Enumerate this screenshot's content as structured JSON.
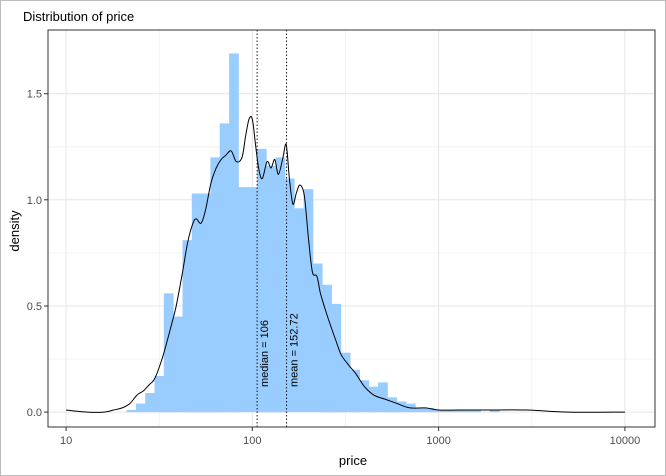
{
  "chart_data": {
    "type": "bar",
    "title": "Distribution of price",
    "xlabel": "price",
    "ylabel": "density",
    "x_scale": "log10",
    "xlim": [
      8,
      14500
    ],
    "ylim": [
      -0.07,
      1.8
    ],
    "x_ticks": [
      10,
      100,
      1000,
      10000
    ],
    "x_tick_labels": [
      "10",
      "100",
      "1000",
      "10000"
    ],
    "y_ticks": [
      0.0,
      0.5,
      1.0,
      1.5
    ],
    "y_tick_labels": [
      "0.0",
      "0.5",
      "1.0",
      "1.5"
    ],
    "grid": true,
    "histogram_bar_color": "#99ccff",
    "density_line_color": "#000000",
    "histogram": {
      "x_left": [
        13.34,
        14.96,
        16.79,
        18.84,
        21.13,
        23.71,
        26.6,
        29.85,
        33.49,
        37.58,
        42.17,
        47.32,
        53.09,
        59.57,
        66.83,
        74.99,
        84.14,
        94.41,
        105.93,
        118.85,
        133.35,
        149.62,
        167.88,
        188.37,
        211.35,
        237.14,
        266.08,
        298.54,
        334.97,
        375.84,
        421.7,
        473.15,
        530.88,
        595.66,
        668.34,
        749.89,
        841.39,
        944.06,
        1059.25,
        1188.5,
        1333.52,
        1496.24,
        1678.8,
        1883.65,
        2113.49,
        2371.37,
        2660.73,
        2985.38,
        3349.65,
        3758.37,
        4216.97
      ],
      "x_right": [
        14.96,
        16.79,
        18.84,
        21.13,
        23.71,
        26.6,
        29.85,
        33.49,
        37.58,
        42.17,
        47.32,
        53.09,
        59.57,
        66.83,
        74.99,
        84.14,
        94.41,
        105.93,
        118.85,
        133.35,
        149.62,
        167.88,
        188.37,
        211.35,
        237.14,
        266.08,
        298.54,
        334.97,
        375.84,
        421.7,
        473.15,
        530.88,
        595.66,
        668.34,
        749.89,
        841.39,
        944.06,
        1059.25,
        1188.5,
        1333.52,
        1496.24,
        1678.8,
        1883.65,
        2113.49,
        2371.37,
        2660.73,
        2985.38,
        3349.65,
        3758.37,
        4216.97,
        4731.51
      ],
      "density": [
        0.0,
        0.0,
        0.0,
        0.0,
        0.01,
        0.04,
        0.09,
        0.17,
        0.56,
        0.45,
        0.81,
        1.03,
        1.03,
        1.2,
        1.36,
        1.69,
        1.06,
        1.06,
        1.24,
        1.16,
        1.2,
        1.1,
        0.96,
        1.05,
        0.7,
        0.6,
        0.51,
        0.28,
        0.2,
        0.15,
        0.12,
        0.14,
        0.07,
        0.05,
        0.04,
        0.02,
        0.02,
        0.01,
        0.01,
        0.01,
        0.01,
        0.01,
        0.0,
        0.01,
        0.0,
        0.0,
        0.0,
        0.0,
        0.0,
        0.0,
        0.0
      ]
    },
    "density_curve": {
      "x": [
        10,
        13,
        16,
        18,
        20,
        22,
        24,
        26,
        28,
        30,
        33,
        36,
        39,
        42,
        45,
        48,
        50,
        53,
        56,
        60,
        64,
        68,
        72,
        77,
        82,
        88,
        92,
        96,
        100,
        104,
        108,
        113,
        120,
        126,
        132,
        138,
        146,
        152,
        158,
        165,
        172,
        180,
        190,
        200,
        210,
        222,
        232,
        245,
        260,
        280,
        300,
        330,
        360,
        400,
        450,
        520,
        600,
        700,
        850,
        1000,
        1300,
        1800,
        3000,
        5000,
        10000
      ],
      "y": [
        0.01,
        0.0,
        0.0,
        0.01,
        0.02,
        0.04,
        0.08,
        0.1,
        0.13,
        0.16,
        0.26,
        0.38,
        0.5,
        0.65,
        0.8,
        0.89,
        0.91,
        0.89,
        0.95,
        1.08,
        1.15,
        1.19,
        1.21,
        1.23,
        1.18,
        1.2,
        1.3,
        1.38,
        1.38,
        1.26,
        1.15,
        1.1,
        1.18,
        1.15,
        1.19,
        1.12,
        1.2,
        1.26,
        1.1,
        0.98,
        1.03,
        1.07,
        1.02,
        0.82,
        0.66,
        0.64,
        0.56,
        0.49,
        0.42,
        0.34,
        0.27,
        0.22,
        0.18,
        0.12,
        0.08,
        0.06,
        0.04,
        0.02,
        0.02,
        0.01,
        0.01,
        0.01,
        0.01,
        0.0,
        0.0
      ]
    },
    "reference_lines": [
      {
        "value": 106,
        "label": "median = 106"
      },
      {
        "value": 152.72,
        "label": "mean = 152.72"
      }
    ]
  }
}
